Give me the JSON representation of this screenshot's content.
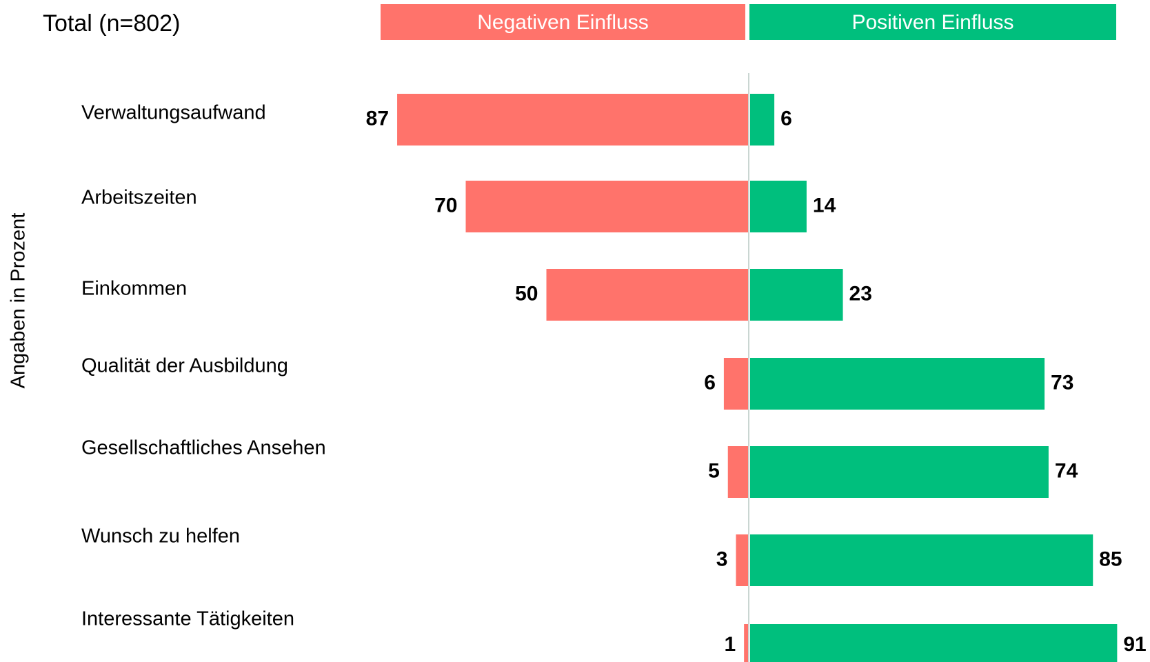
{
  "chart_data": {
    "type": "diverging_bar",
    "title": "Total (n=802)",
    "ylabel": "Angaben in Prozent",
    "categories": [
      "Verwaltungsaufwand",
      "Arbeitszeiten",
      "Einkommen",
      "Qualität der Ausbildung",
      "Gesellschaftliches Ansehen",
      "Wunsch zu helfen",
      "Interessante Tätigkeiten"
    ],
    "series": [
      {
        "name": "Negativen Einfluss",
        "color": "#ff736b",
        "values": [
          87,
          70,
          50,
          6,
          5,
          3,
          1
        ]
      },
      {
        "name": "Positiven Einfluss",
        "color": "#00bf7d",
        "values": [
          6,
          14,
          23,
          73,
          74,
          85,
          91
        ]
      }
    ]
  }
}
